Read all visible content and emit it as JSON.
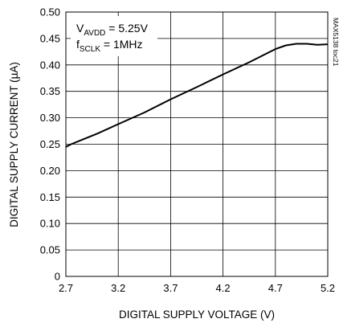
{
  "chart_data": {
    "type": "line",
    "title": "",
    "xlabel": "DIGITAL SUPPLY VOLTAGE (V)",
    "ylabel": "DIGITAL SUPPLY CURRENT (µA)",
    "xlim": [
      2.7,
      5.2
    ],
    "ylim": [
      0,
      0.5
    ],
    "xticks": [
      2.7,
      3.2,
      3.7,
      4.2,
      4.7,
      5.2
    ],
    "xtick_labels": [
      "2.7",
      "3.2",
      "3.7",
      "4.2",
      "4.7",
      "5.2"
    ],
    "yticks": [
      0,
      0.05,
      0.1,
      0.15,
      0.2,
      0.25,
      0.3,
      0.35,
      0.4,
      0.45,
      0.5
    ],
    "ytick_labels": [
      "0",
      "0.05",
      "0.10",
      "0.15",
      "0.20",
      "0.25",
      "0.30",
      "0.35",
      "0.40",
      "0.45",
      "0.50"
    ],
    "grid": true,
    "series": [
      {
        "color": "#000000",
        "x": [
          2.7,
          2.75,
          2.85,
          3.0,
          3.2,
          3.45,
          3.7,
          3.95,
          4.2,
          4.45,
          4.6,
          4.7,
          4.8,
          4.9,
          5.0,
          5.1,
          5.2
        ],
        "y": [
          0.245,
          0.25,
          0.258,
          0.27,
          0.288,
          0.31,
          0.335,
          0.358,
          0.382,
          0.405,
          0.42,
          0.43,
          0.437,
          0.44,
          0.44,
          0.438,
          0.439
        ]
      }
    ],
    "annotations": {
      "line1": {
        "main": "V",
        "sub": "AVDD",
        "rest": " = 5.25V"
      },
      "line2": {
        "main": "f",
        "sub": "SCLK",
        "rest": " = 1MHz"
      }
    },
    "side_label": "MAX5138 toc21"
  }
}
